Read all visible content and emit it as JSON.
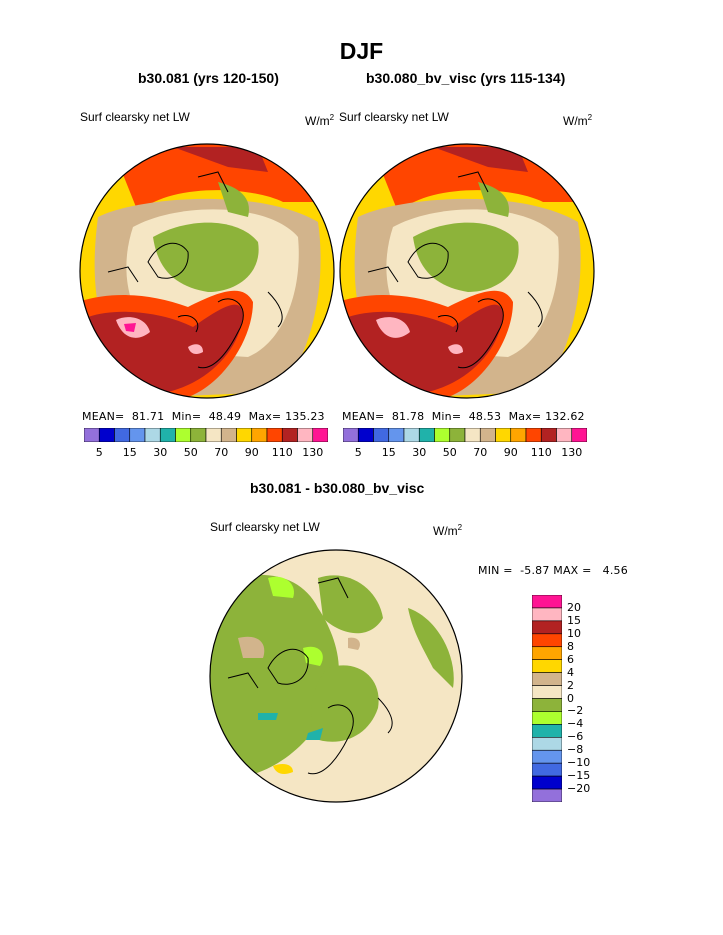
{
  "title": "DJF",
  "left_panel": {
    "case_title": "b30.081 (yrs 120-150)",
    "variable": "Surf clearsky net LW",
    "units_base": "W/m",
    "units_exp": "2",
    "mean_label": "MEAN=",
    "mean_value": "81.71",
    "min_label": "Min=",
    "min_value": "48.49",
    "max_label": "Max=",
    "max_value": "135.23"
  },
  "right_panel": {
    "case_title": "b30.080_bv_visc (yrs 115-134)",
    "variable": "Surf clearsky net LW",
    "units_base": "W/m",
    "units_exp": "2",
    "mean_label": "MEAN=",
    "mean_value": "81.78",
    "min_label": "Min=",
    "min_value": "48.53",
    "max_label": "Max=",
    "max_value": "132.62"
  },
  "diff_panel": {
    "case_title": "b30.081 - b30.080_bv_visc",
    "variable": "Surf clearsky net LW",
    "units_base": "W/m",
    "units_exp": "2",
    "min_label": "MIN =",
    "min_value": "-5.87",
    "max_label": "MAX =",
    "max_value": "4.56"
  },
  "field_colorbar": {
    "colors": [
      "#9370db",
      "#0000cd",
      "#4169e1",
      "#6495ed",
      "#add8e6",
      "#20b2aa",
      "#adff2f",
      "#8db33a",
      "#f5e6c4",
      "#d2b48c",
      "#ffd700",
      "#ffa500",
      "#ff4500",
      "#b22222",
      "#ffb6c1",
      "#ff1493"
    ],
    "tick_labels": [
      "5",
      "15",
      "30",
      "50",
      "70",
      "90",
      "110",
      "130"
    ]
  },
  "diff_colorbar": {
    "colors_top_to_bottom": [
      "#ff1493",
      "#ffb6c1",
      "#b22222",
      "#ff4500",
      "#ffa500",
      "#ffd700",
      "#d2b48c",
      "#f5e6c4",
      "#8db33a",
      "#adff2f",
      "#20b2aa",
      "#add8e6",
      "#6495ed",
      "#4169e1",
      "#0000cd",
      "#9370db"
    ],
    "tick_labels_top_to_bottom": [
      "20",
      "15",
      "10",
      "8",
      "6",
      "4",
      "2",
      "0",
      "−2",
      "−4",
      "−6",
      "−8",
      "−10",
      "−15",
      "−20"
    ]
  }
}
